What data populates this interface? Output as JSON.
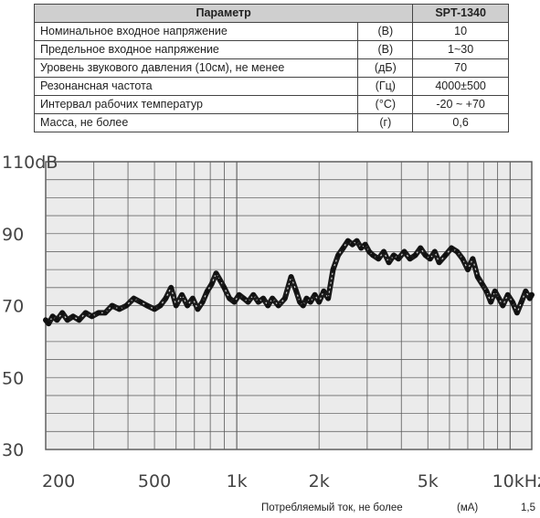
{
  "spec": {
    "header": {
      "param": "Параметр",
      "model": "SPT-1340"
    },
    "rows": [
      {
        "name": "Номинальное входное напряжение",
        "unit": "(В)",
        "value": "10"
      },
      {
        "name": "Предельное входное напряжение",
        "unit": "(В)",
        "value": "1~30"
      },
      {
        "name": "Уровень звукового давления (10см), не менее",
        "unit": "(дБ)",
        "value": "70"
      },
      {
        "name": "Резонансная частота",
        "unit": "(Гц)",
        "value": "4000±500"
      },
      {
        "name": "Интервал рабочих температур",
        "unit": "(°С)",
        "value": "-20 ~ +70"
      },
      {
        "name": "Масса, не более",
        "unit": "(г)",
        "value": "0,6"
      }
    ]
  },
  "footer": {
    "label": "Потребляемый ток, не более",
    "unit": "(мА)",
    "value": "1,5"
  },
  "chart_data": {
    "type": "line",
    "x_scale": "log",
    "xlim": [
      200,
      12000
    ],
    "ylim": [
      30,
      110
    ],
    "grid": true,
    "y_ticks": [
      {
        "value": 110,
        "label": "110dB"
      },
      {
        "value": 90,
        "label": "90"
      },
      {
        "value": 70,
        "label": "70"
      },
      {
        "value": 50,
        "label": "50"
      },
      {
        "value": 30,
        "label": "30"
      }
    ],
    "x_ticks": [
      {
        "value": 200,
        "label": "200"
      },
      {
        "value": 500,
        "label": "500"
      },
      {
        "value": 1000,
        "label": "1k"
      },
      {
        "value": 2000,
        "label": "2k"
      },
      {
        "value": 5000,
        "label": "5k"
      },
      {
        "value": 10000,
        "label": "10kHz"
      }
    ],
    "series": [
      {
        "x": [
          200,
          205,
          212,
          220,
          230,
          240,
          252,
          265,
          280,
          295,
          312,
          330,
          350,
          372,
          395,
          420,
          445,
          470,
          500,
          525,
          550,
          575,
          600,
          630,
          660,
          690,
          720,
          750,
          780,
          810,
          840,
          870,
          900,
          940,
          980,
          1020,
          1060,
          1100,
          1150,
          1200,
          1250,
          1300,
          1350,
          1420,
          1500,
          1580,
          1650,
          1700,
          1750,
          1800,
          1860,
          1930,
          2000,
          2080,
          2160,
          2250,
          2350,
          2450,
          2550,
          2650,
          2750,
          2850,
          2950,
          3050,
          3150,
          3300,
          3450,
          3600,
          3750,
          3900,
          4100,
          4300,
          4500,
          4700,
          4900,
          5100,
          5300,
          5500,
          5800,
          6100,
          6400,
          6700,
          7000,
          7300,
          7600,
          7900,
          8200,
          8500,
          8800,
          9100,
          9400,
          9800,
          10200,
          10600,
          11000,
          11400,
          11800,
          12000
        ],
        "y": [
          66,
          65,
          67,
          66,
          68,
          66,
          67,
          66,
          68,
          67,
          68,
          68,
          70,
          69,
          70,
          72,
          71,
          70,
          69,
          70,
          72,
          75,
          70,
          73,
          70,
          72,
          69,
          71,
          74,
          76,
          79,
          77,
          75,
          72,
          71,
          73,
          72,
          71,
          73,
          71,
          72,
          70,
          72,
          70,
          72,
          78,
          74,
          71,
          70,
          72,
          71,
          73,
          71,
          74,
          72,
          80,
          84,
          86,
          88,
          87,
          88,
          86,
          87,
          85,
          84,
          83,
          85,
          82,
          84,
          83,
          85,
          83,
          84,
          86,
          84,
          83,
          85,
          82,
          84,
          86,
          85,
          83,
          80,
          83,
          78,
          76,
          74,
          71,
          74,
          72,
          70,
          73,
          71,
          68,
          71,
          74,
          72,
          73
        ]
      }
    ]
  }
}
